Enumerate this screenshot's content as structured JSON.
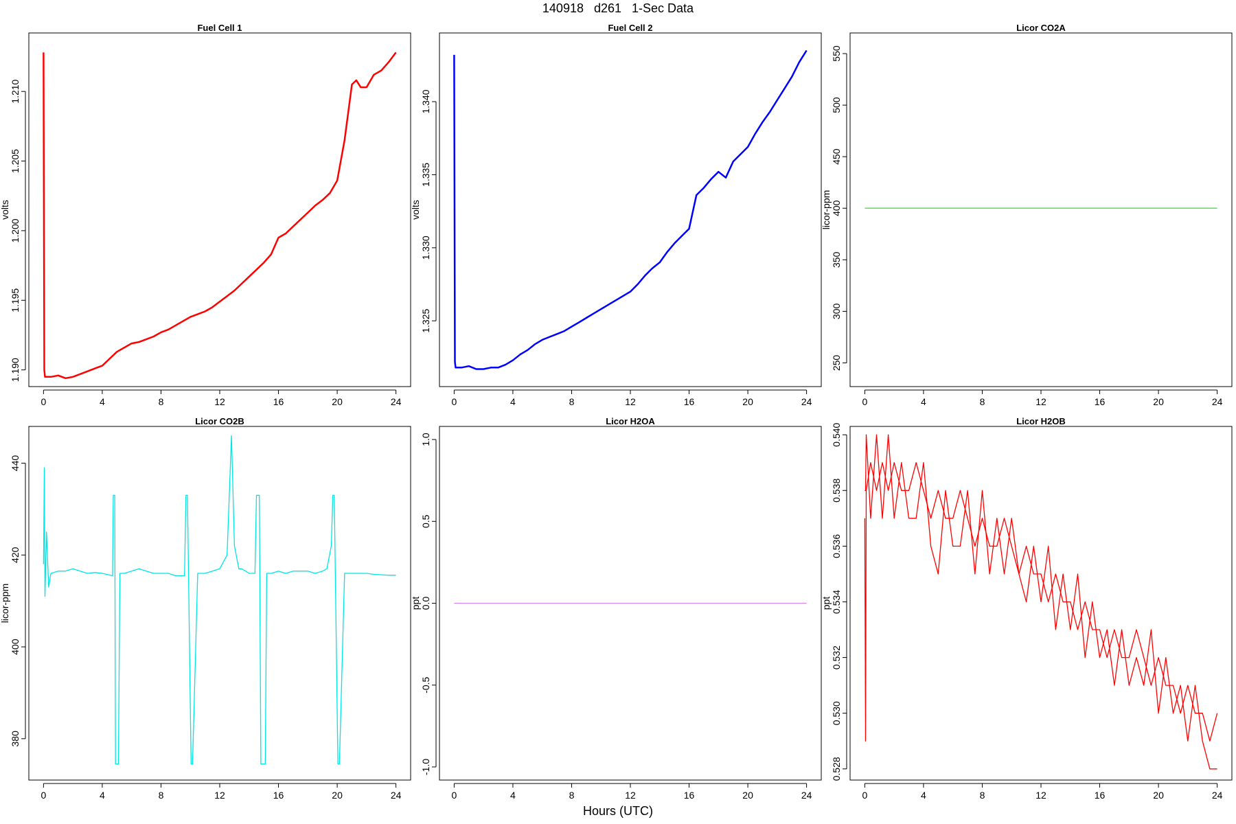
{
  "page": {
    "title": "140918   d261   1-Sec Data",
    "xlabel": "Hours (UTC)"
  },
  "chart_data": [
    {
      "type": "line",
      "title": "Fuel Cell 1",
      "xlabel": "",
      "ylabel": "volts",
      "color": "#ff0000",
      "xlim": [
        -1,
        25
      ],
      "ylim": [
        1.1888,
        1.2142
      ],
      "xticks": [
        0,
        4,
        8,
        12,
        16,
        20,
        24
      ],
      "yticks": [
        1.19,
        1.195,
        1.2,
        1.205,
        1.21
      ],
      "ytick_labels": [
        "1.190",
        "1.195",
        "1.200",
        "1.205",
        "1.210"
      ],
      "grid": false,
      "legend": "none",
      "series": [
        {
          "x": [
            0,
            0.05,
            0.1,
            0.5,
            1,
            1.5,
            2,
            2.5,
            3,
            3.5,
            4,
            4.5,
            5,
            5.5,
            6,
            6.5,
            7,
            7.5,
            8,
            8.5,
            9,
            9.5,
            10,
            10.5,
            11,
            11.5,
            12,
            12.5,
            13,
            13.5,
            14,
            14.5,
            15,
            15.5,
            16,
            16.5,
            17,
            17.5,
            18,
            18.5,
            19,
            19.5,
            20,
            20.5,
            21,
            21.3,
            21.6,
            22,
            22.5,
            23,
            23.5,
            24
          ],
          "y": [
            1.2128,
            1.19,
            1.1895,
            1.1895,
            1.1896,
            1.1894,
            1.1895,
            1.1897,
            1.1899,
            1.1901,
            1.1903,
            1.1908,
            1.1913,
            1.1916,
            1.1919,
            1.192,
            1.1922,
            1.1924,
            1.1927,
            1.1929,
            1.1932,
            1.1935,
            1.1938,
            1.194,
            1.1942,
            1.1945,
            1.1949,
            1.1953,
            1.1957,
            1.1962,
            1.1967,
            1.1972,
            1.1977,
            1.1983,
            1.1995,
            1.1998,
            1.2003,
            1.2008,
            1.2013,
            1.2018,
            1.2022,
            1.2027,
            1.2036,
            1.2065,
            1.2105,
            1.2108,
            1.2103,
            1.2103,
            1.2112,
            1.2115,
            1.2121,
            1.2128
          ]
        }
      ]
    },
    {
      "type": "line",
      "title": "Fuel Cell 2",
      "xlabel": "",
      "ylabel": "volts",
      "color": "#0000ff",
      "xlim": [
        -1,
        25
      ],
      "ylim": [
        1.3205,
        1.3447
      ],
      "xticks": [
        0,
        4,
        8,
        12,
        16,
        20,
        24
      ],
      "yticks": [
        1.325,
        1.33,
        1.335,
        1.34
      ],
      "ytick_labels": [
        "1.325",
        "1.330",
        "1.335",
        "1.340"
      ],
      "grid": false,
      "legend": "none",
      "series": [
        {
          "x": [
            0,
            0.05,
            0.1,
            0.5,
            1,
            1.5,
            2,
            2.5,
            3,
            3.5,
            4,
            4.5,
            5,
            5.5,
            6,
            6.5,
            7,
            7.5,
            8,
            8.5,
            9,
            9.5,
            10,
            10.5,
            11,
            11.5,
            12,
            12.5,
            13,
            13.5,
            14,
            14.5,
            15,
            15.5,
            16,
            16.5,
            17,
            17.5,
            18,
            18.5,
            19,
            19.5,
            20,
            20.5,
            21,
            21.5,
            22,
            22.5,
            23,
            23.5,
            24
          ],
          "y": [
            1.3432,
            1.3222,
            1.3218,
            1.3218,
            1.3219,
            1.3217,
            1.3217,
            1.3218,
            1.3218,
            1.322,
            1.3223,
            1.3227,
            1.323,
            1.3234,
            1.3237,
            1.3239,
            1.3241,
            1.3243,
            1.3246,
            1.3249,
            1.3252,
            1.3255,
            1.3258,
            1.3261,
            1.3264,
            1.3267,
            1.327,
            1.3275,
            1.3281,
            1.3286,
            1.329,
            1.3297,
            1.3303,
            1.3308,
            1.3313,
            1.3336,
            1.3341,
            1.3347,
            1.3352,
            1.3348,
            1.3359,
            1.3364,
            1.3369,
            1.3378,
            1.3386,
            1.3393,
            1.3401,
            1.3409,
            1.3417,
            1.3427,
            1.3435
          ]
        }
      ]
    },
    {
      "type": "line",
      "title": "Licor CO2A",
      "xlabel": "",
      "ylabel": "licor-ppm",
      "color": "#44dd44",
      "xlim": [
        -1,
        25
      ],
      "ylim": [
        227,
        570
      ],
      "xticks": [
        0,
        4,
        8,
        12,
        16,
        20,
        24
      ],
      "yticks": [
        250,
        300,
        350,
        400,
        450,
        500,
        550
      ],
      "ytick_labels": [
        "250",
        "300",
        "350",
        "400",
        "450",
        "500",
        "550"
      ],
      "grid": false,
      "legend": "none",
      "series": [
        {
          "x": [
            0,
            24
          ],
          "y": [
            400,
            400
          ]
        }
      ]
    },
    {
      "type": "line",
      "title": "Licor CO2B",
      "xlabel": "",
      "ylabel": "licor-ppm",
      "color": "#00e5e5",
      "xlim": [
        -1,
        25
      ],
      "ylim": [
        371,
        448
      ],
      "xticks": [
        0,
        4,
        8,
        12,
        16,
        20,
        24
      ],
      "yticks": [
        380,
        400,
        420,
        440
      ],
      "ytick_labels": [
        "380",
        "400",
        "420",
        "440"
      ],
      "grid": false,
      "legend": "none",
      "series": [
        {
          "x": [
            0,
            0.05,
            0.1,
            0.2,
            0.35,
            0.5,
            1,
            1.5,
            2,
            2.5,
            3,
            3.5,
            4,
            4.7,
            4.75,
            4.85,
            4.9,
            5.1,
            5.2,
            5.5,
            6,
            6.5,
            7,
            7.5,
            8,
            8.5,
            9,
            9.6,
            9.7,
            9.8,
            10.05,
            10.15,
            10.5,
            11,
            11.5,
            12,
            12.5,
            12.8,
            13,
            13.3,
            13.5,
            14,
            14.4,
            14.5,
            14.7,
            14.8,
            15.1,
            15.2,
            15.5,
            16,
            16.5,
            17,
            17.5,
            18,
            18.5,
            19,
            19.3,
            19.6,
            19.7,
            19.8,
            20.05,
            20.15,
            20.5,
            21,
            21.5,
            22,
            22.5,
            23,
            23.5,
            24
          ],
          "y": [
            418,
            439,
            411,
            425,
            413,
            416,
            416.5,
            416.5,
            417,
            416.5,
            416,
            416.2,
            416,
            415.5,
            433,
            433,
            374.5,
            374.5,
            416,
            416,
            416.5,
            417,
            416.5,
            416,
            416,
            416,
            415.5,
            415.5,
            433,
            433,
            374.5,
            374.5,
            416,
            416,
            416.5,
            417,
            420,
            446,
            422,
            417,
            417,
            416,
            416,
            433,
            433,
            374.5,
            374.5,
            416,
            416,
            416.5,
            416,
            416.5,
            416.5,
            416.5,
            416,
            416.5,
            417,
            422,
            433,
            433,
            374.5,
            374.5,
            416,
            416,
            416,
            416,
            415.8,
            415.7,
            415.6,
            415.6
          ]
        }
      ]
    },
    {
      "type": "line",
      "title": "Licor H2OA",
      "xlabel": "",
      "ylabel": "ppt",
      "color": "#dd88ee",
      "xlim": [
        -1,
        25
      ],
      "ylim": [
        -1.08,
        1.08
      ],
      "xticks": [
        0,
        4,
        8,
        12,
        16,
        20,
        24
      ],
      "yticks": [
        -1,
        -0.5,
        0,
        0.5,
        1
      ],
      "ytick_labels": [
        "-1.0",
        "-0.5",
        "0.0",
        "0.5",
        "1.0"
      ],
      "grid": false,
      "legend": "none",
      "series": [
        {
          "x": [
            0,
            24
          ],
          "y": [
            0,
            0
          ]
        }
      ]
    },
    {
      "type": "line",
      "title": "Licor H2OB",
      "xlabel": "",
      "ylabel": "ppt",
      "color": "#ff0000",
      "xlim": [
        -1,
        25
      ],
      "ylim": [
        0.5276,
        0.5403
      ],
      "xticks": [
        0,
        4,
        8,
        12,
        16,
        20,
        24
      ],
      "yticks": [
        0.528,
        0.53,
        0.532,
        0.534,
        0.536,
        0.538,
        0.54
      ],
      "ytick_labels": [
        "0.528",
        "0.530",
        "0.532",
        "0.534",
        "0.536",
        "0.538",
        "0.540"
      ],
      "grid": false,
      "legend": "none",
      "series": [
        {
          "x": [
            0,
            0.05,
            0.1,
            0.4,
            0.8,
            1.2,
            1.6,
            2,
            2.5,
            3,
            3.5,
            4,
            4.5,
            5,
            5.5,
            6,
            6.5,
            7,
            7.5,
            8,
            8.5,
            9,
            9.5,
            10,
            10.5,
            11,
            11.5,
            12,
            12.5,
            13,
            13.5,
            14,
            14.5,
            15,
            15.5,
            16,
            16.5,
            17,
            17.5,
            18,
            18.5,
            19,
            19.5,
            20,
            20.5,
            21,
            21.5,
            22,
            22.5,
            23,
            23.5,
            24
          ],
          "y": [
            0.537,
            0.529,
            0.538,
            0.539,
            0.538,
            0.539,
            0.538,
            0.539,
            0.538,
            0.538,
            0.539,
            0.538,
            0.537,
            0.538,
            0.537,
            0.537,
            0.538,
            0.537,
            0.536,
            0.537,
            0.536,
            0.536,
            0.537,
            0.536,
            0.535,
            0.536,
            0.535,
            0.535,
            0.534,
            0.535,
            0.534,
            0.534,
            0.533,
            0.534,
            0.533,
            0.533,
            0.532,
            0.533,
            0.532,
            0.532,
            0.533,
            0.532,
            0.531,
            0.532,
            0.531,
            0.531,
            0.53,
            0.531,
            0.53,
            0.53,
            0.529,
            0.53
          ]
        },
        {
          "x": [
            0,
            0.05,
            0.1,
            0.4,
            0.8,
            1.2,
            1.6,
            2,
            2.5,
            3,
            3.5,
            4,
            4.5,
            5,
            5.5,
            6,
            6.5,
            7,
            7.5,
            8,
            8.5,
            9,
            9.5,
            10,
            10.5,
            11,
            11.5,
            12,
            12.5,
            13,
            13.5,
            14,
            14.5,
            15,
            15.5,
            16,
            16.5,
            17,
            17.5,
            18,
            18.5,
            19,
            19.5,
            20,
            20.5,
            21,
            21.5,
            22,
            22.5,
            23,
            23.5,
            24
          ],
          "y": [
            0.538,
            0.538,
            0.54,
            0.537,
            0.54,
            0.537,
            0.54,
            0.537,
            0.539,
            0.537,
            0.537,
            0.539,
            0.536,
            0.535,
            0.538,
            0.536,
            0.536,
            0.538,
            0.535,
            0.538,
            0.535,
            0.537,
            0.535,
            0.537,
            0.535,
            0.534,
            0.536,
            0.534,
            0.536,
            0.533,
            0.535,
            0.533,
            0.535,
            0.532,
            0.534,
            0.532,
            0.533,
            0.531,
            0.533,
            0.531,
            0.532,
            0.531,
            0.533,
            0.53,
            0.532,
            0.53,
            0.531,
            0.529,
            0.531,
            0.529,
            0.528,
            0.528
          ]
        }
      ]
    }
  ]
}
